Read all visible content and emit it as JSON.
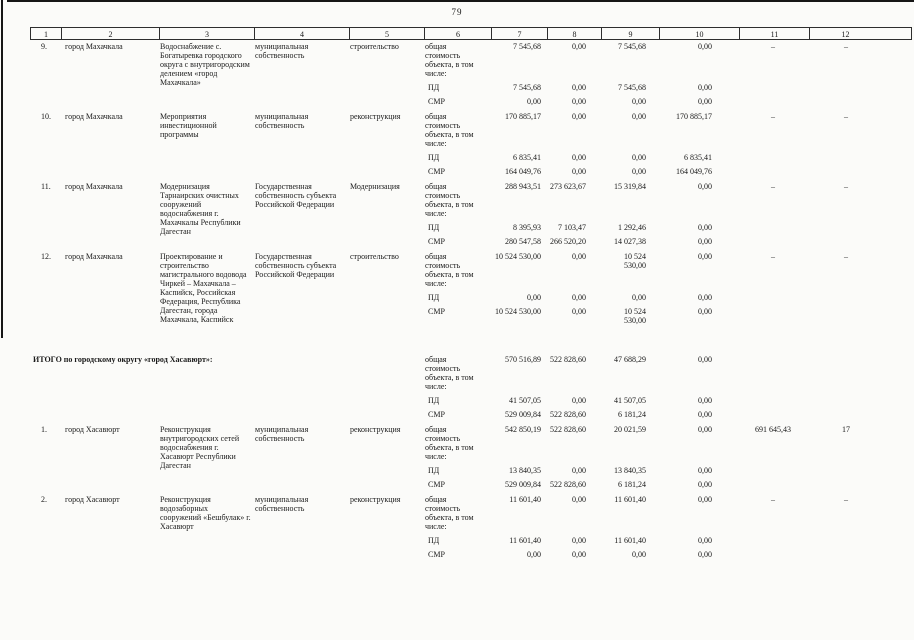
{
  "page_number": "79",
  "table": {
    "header_columns": [
      "1",
      "2",
      "3",
      "4",
      "5",
      "6",
      "7",
      "8",
      "9",
      "10",
      "11",
      "12"
    ],
    "labels": {
      "cost": "общая стоимость объекта, в том числе:",
      "pd": "ПД",
      "smr": "СМР"
    },
    "groups": [
      {
        "num": "9.",
        "city": "город Махачкала",
        "description": "Водоснабжение с. Богатыревка городского округа с внутригородским делением «город Махачкала»",
        "ownership": "муниципальная собственность",
        "work_type": "строительство",
        "total": [
          "7 545,68",
          "0,00",
          "7 545,68",
          "0,00"
        ],
        "pd": [
          "7 545,68",
          "0,00",
          "7 545,68",
          "0,00"
        ],
        "smr": [
          "0,00",
          "0,00",
          "0,00",
          "0,00"
        ],
        "col11": "–",
        "col12": "–"
      },
      {
        "num": "10.",
        "city": "город Махачкала",
        "description": "Мероприятия инвестиционной программы",
        "ownership": "муниципальная собственность",
        "work_type": "реконструкция",
        "total": [
          "170 885,17",
          "0,00",
          "0,00",
          "170 885,17"
        ],
        "pd": [
          "6 835,41",
          "0,00",
          "0,00",
          "6 835,41"
        ],
        "smr": [
          "164 049,76",
          "0,00",
          "0,00",
          "164 049,76"
        ],
        "col11": "–",
        "col12": "–"
      },
      {
        "num": "11.",
        "city": "город Махачкала",
        "description": "Модернизация Тарнаирских очистных сооружений водоснабжения г. Махачкалы Республики Дагестан",
        "ownership": "Государственная собственность субъекта Российской Федерации",
        "work_type": "Модернизация",
        "total": [
          "288 943,51",
          "273 623,67",
          "15 319,84",
          "0,00"
        ],
        "pd": [
          "8 395,93",
          "7 103,47",
          "1 292,46",
          "0,00"
        ],
        "smr": [
          "280 547,58",
          "266 520,20",
          "14 027,38",
          "0,00"
        ],
        "col11": "–",
        "col12": "–"
      },
      {
        "num": "12.",
        "city": "город Махачкала",
        "description": "Проектирование и строительство магистрального водовода Чиркей – Махачкала – Каспийск, Российская Федерация, Республика Дагестан, города Махачкала, Каспийск",
        "ownership": "Государственная собственность субъекта Российской Федерации",
        "work_type": "строительство",
        "total": [
          "10 524 530,00",
          "0,00",
          "10 524 530,00",
          "0,00"
        ],
        "pd": [
          "0,00",
          "0,00",
          "0,00",
          "0,00"
        ],
        "smr": [
          "10 524 530,00",
          "0,00",
          "10 524 530,00",
          "0,00"
        ],
        "col11": "–",
        "col12": "–"
      },
      {
        "type": "subtotal",
        "label": "ИТОГО по городскому округу «город Хасавюрт»:",
        "total": [
          "570 516,89",
          "522 828,60",
          "47 688,29",
          "0,00"
        ],
        "pd": [
          "41 507,05",
          "0,00",
          "41 507,05",
          "0,00"
        ],
        "smr": [
          "529 009,84",
          "522 828,60",
          "6 181,24",
          "0,00"
        ]
      },
      {
        "num": "1.",
        "city": "город Хасавюрт",
        "description": "Реконструкция внутригородских сетей водоснабжения г. Хасавюрт Республики Дагестан",
        "ownership": "муниципальная собственность",
        "work_type": "реконструкция",
        "total": [
          "542 850,19",
          "522 828,60",
          "20 021,59",
          "0,00"
        ],
        "pd": [
          "13 840,35",
          "0,00",
          "13 840,35",
          "0,00"
        ],
        "smr": [
          "529 009,84",
          "522 828,60",
          "6 181,24",
          "0,00"
        ],
        "col11": "691 645,43",
        "col12": "17"
      },
      {
        "num": "2.",
        "city": "город Хасавюрт",
        "description": "Реконструкция водозаборных сооружений «Бешбулак» г. Хасавюрт",
        "ownership": "муниципальная собственность",
        "work_type": "реконструкция",
        "total": [
          "11 601,40",
          "0,00",
          "11 601,40",
          "0,00"
        ],
        "pd": [
          "11 601,40",
          "0,00",
          "11 601,40",
          "0,00"
        ],
        "smr": [
          "0,00",
          "0,00",
          "0,00",
          "0,00"
        ],
        "col11": "–",
        "col12": "–"
      }
    ]
  }
}
